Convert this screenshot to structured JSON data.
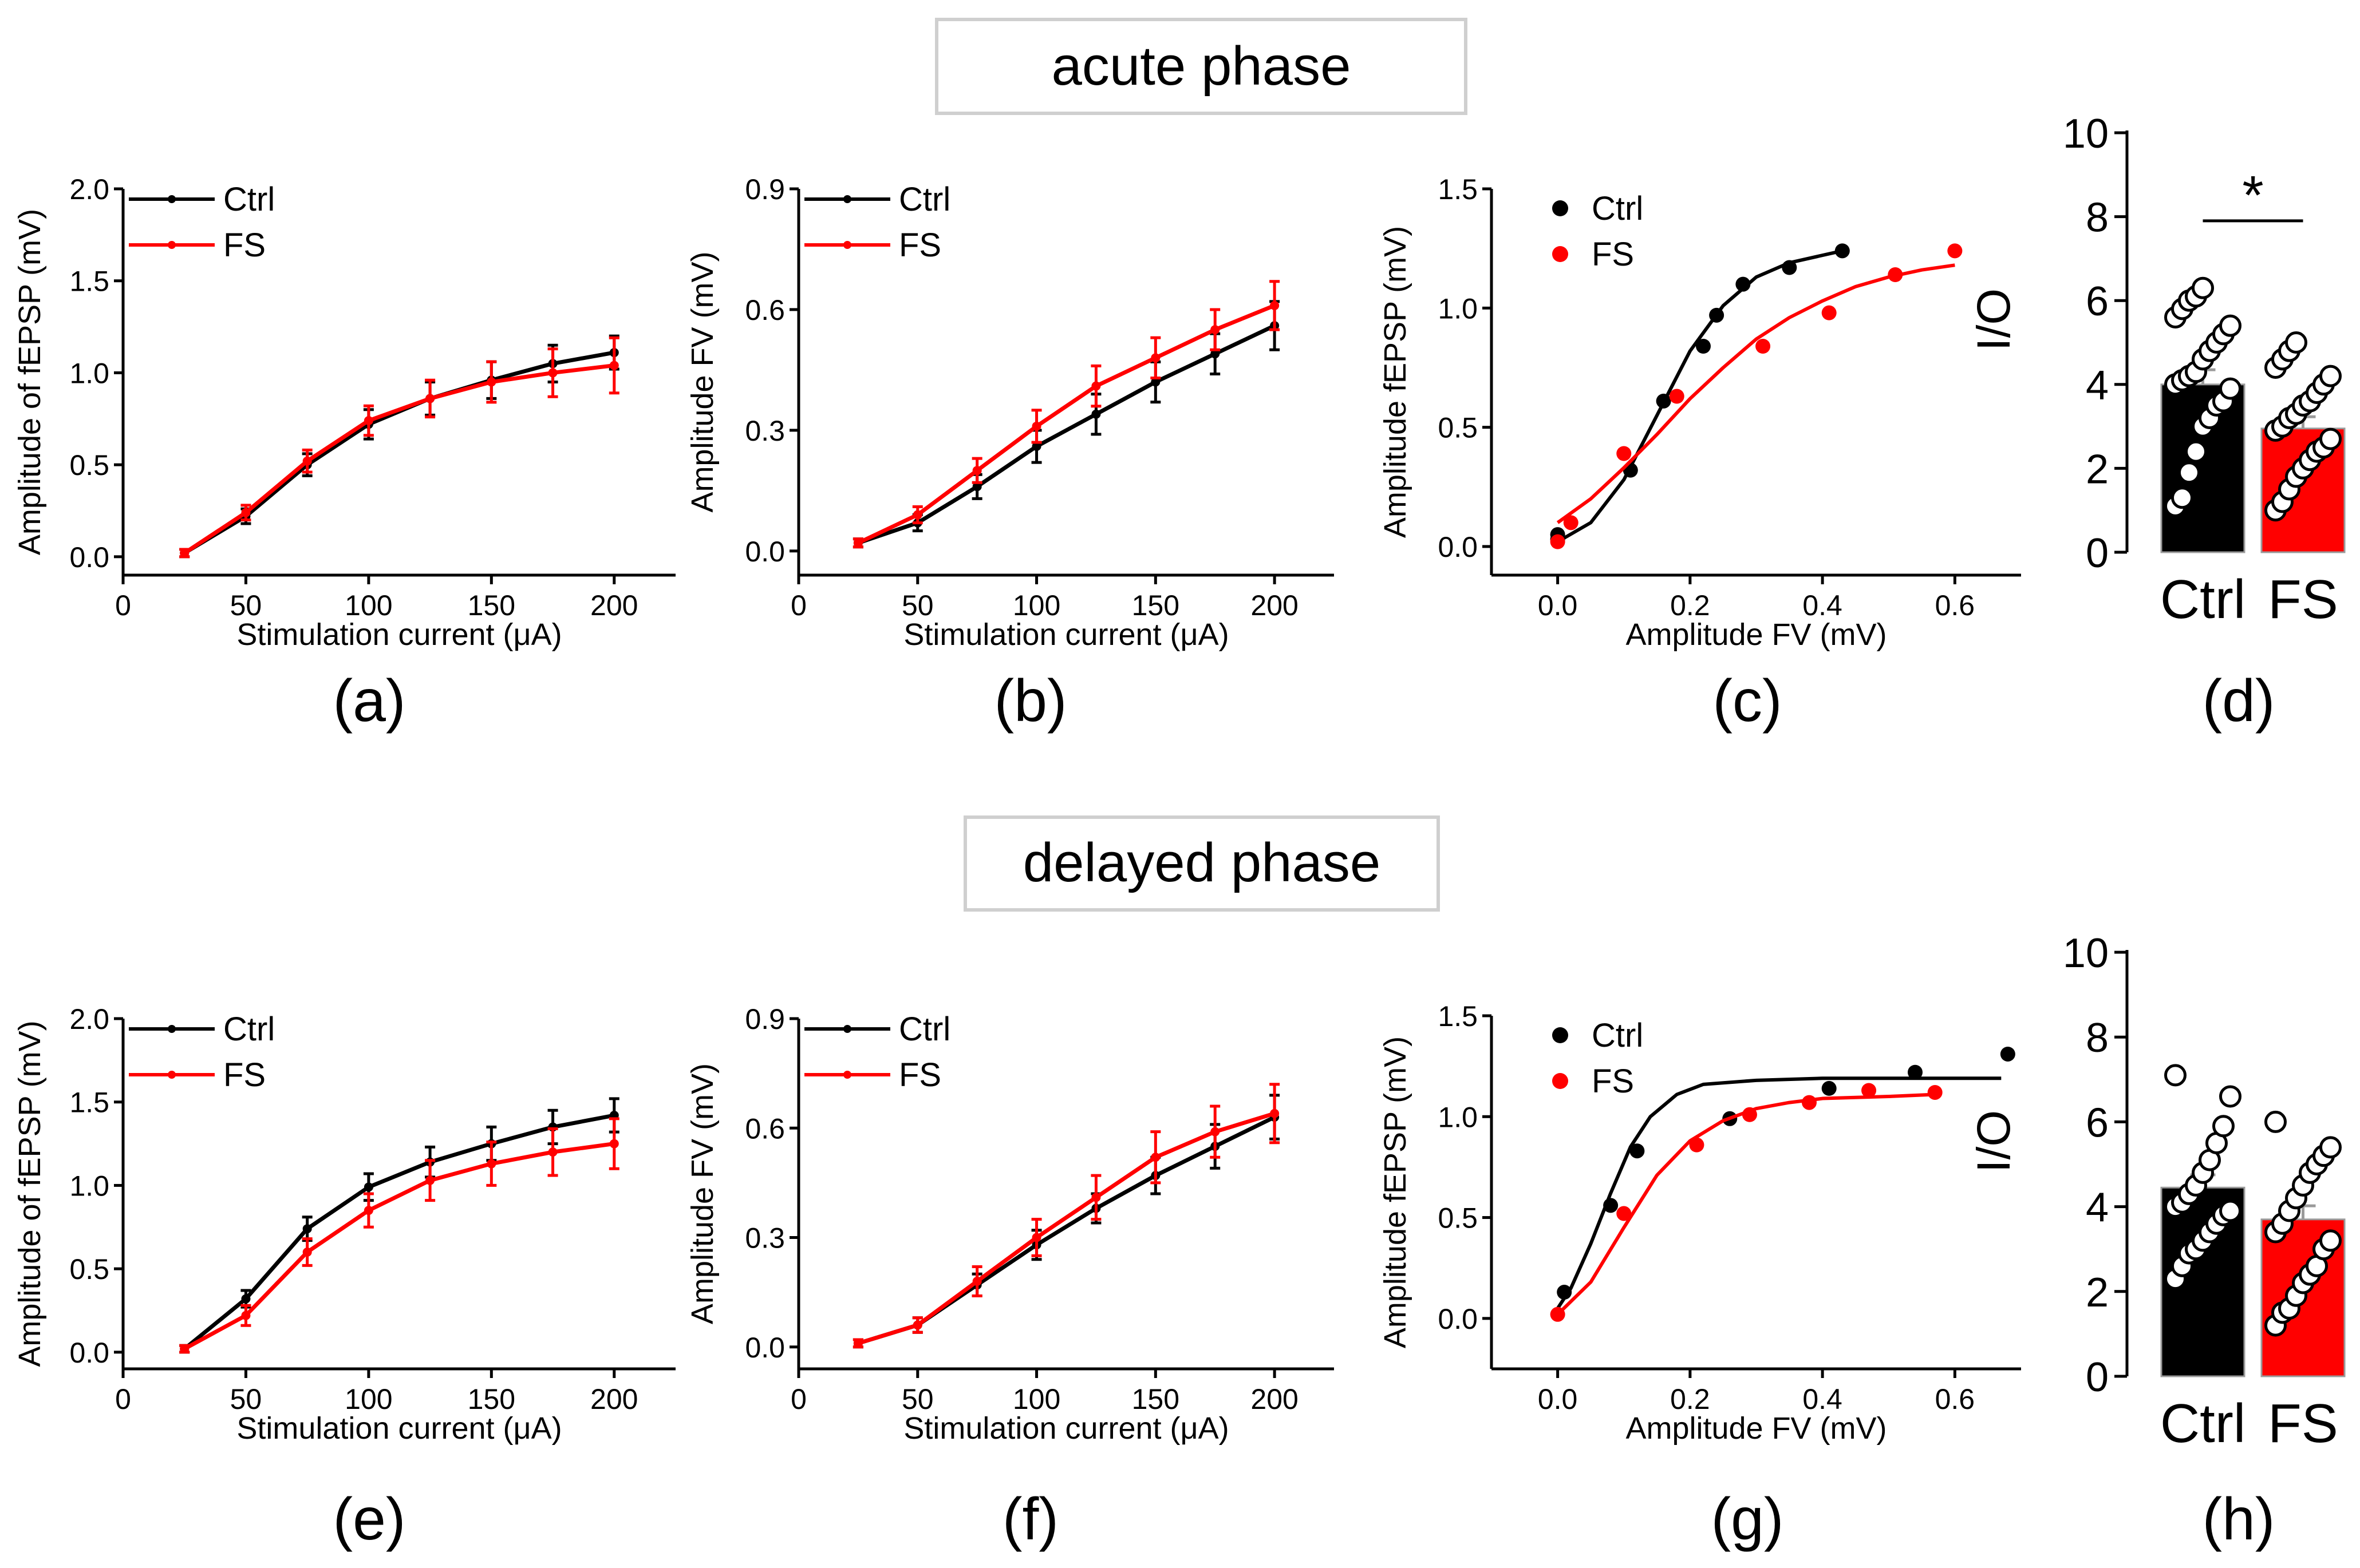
{
  "phases": [
    {
      "title": "acute phase"
    },
    {
      "title": "delayed phase"
    }
  ],
  "colors": {
    "ctrl": "#000000",
    "fs": "#ff0000",
    "box_border": "#cfcfcf"
  },
  "chart_data": [
    {
      "id": "a",
      "panel_label": "(a)",
      "type": "line",
      "xlabel": "Stimulation current (μA)",
      "ylabel": "Amplitude of fEPSP (mV)",
      "xlim": [
        0,
        225
      ],
      "ylim": [
        -0.1,
        2.0
      ],
      "xticks": [
        0,
        50,
        100,
        150,
        200
      ],
      "xtick_labels": [
        "0",
        "50",
        "100",
        "150",
        "200"
      ],
      "yticks": [
        0,
        0.5,
        1.0,
        1.5,
        2.0
      ],
      "ytick_labels": [
        "0.0",
        "0.5",
        "1.0",
        "1.5",
        "2.0"
      ],
      "legend_position": "top-left",
      "x": [
        25,
        50,
        75,
        100,
        125,
        150,
        175,
        200
      ],
      "series": [
        {
          "name": "Ctrl",
          "color": "#000000",
          "values": [
            0.02,
            0.22,
            0.5,
            0.72,
            0.86,
            0.96,
            1.05,
            1.11
          ],
          "errors": [
            0.02,
            0.04,
            0.06,
            0.08,
            0.09,
            0.1,
            0.1,
            0.09
          ]
        },
        {
          "name": "FS",
          "color": "#ff0000",
          "values": [
            0.02,
            0.24,
            0.52,
            0.74,
            0.86,
            0.95,
            1.0,
            1.04
          ],
          "errors": [
            0.02,
            0.04,
            0.06,
            0.08,
            0.1,
            0.11,
            0.13,
            0.15
          ]
        }
      ]
    },
    {
      "id": "b",
      "panel_label": "(b)",
      "type": "line",
      "xlabel": "Stimulation current (μA)",
      "ylabel": "Amplitude FV (mV)",
      "xlim": [
        0,
        225
      ],
      "ylim": [
        -0.06,
        0.9
      ],
      "xticks": [
        0,
        50,
        100,
        150,
        200
      ],
      "xtick_labels": [
        "0",
        "50",
        "100",
        "150",
        "200"
      ],
      "yticks": [
        0,
        0.3,
        0.6,
        0.9
      ],
      "ytick_labels": [
        "0.0",
        "0.3",
        "0.6",
        "0.9"
      ],
      "legend_position": "top-left",
      "x": [
        25,
        50,
        75,
        100,
        125,
        150,
        175,
        200
      ],
      "series": [
        {
          "name": "Ctrl",
          "color": "#000000",
          "values": [
            0.02,
            0.07,
            0.16,
            0.26,
            0.34,
            0.42,
            0.49,
            0.56
          ],
          "errors": [
            0.01,
            0.02,
            0.03,
            0.04,
            0.05,
            0.05,
            0.05,
            0.06
          ]
        },
        {
          "name": "FS",
          "color": "#ff0000",
          "values": [
            0.02,
            0.09,
            0.2,
            0.31,
            0.41,
            0.48,
            0.55,
            0.61
          ],
          "errors": [
            0.01,
            0.02,
            0.03,
            0.04,
            0.05,
            0.05,
            0.05,
            0.06
          ]
        }
      ]
    },
    {
      "id": "c",
      "panel_label": "(c)",
      "type": "scatter",
      "xlabel": "Amplitude FV (mV)",
      "ylabel": "Amplitude fEPSP (mV)",
      "xlim": [
        -0.1,
        0.7
      ],
      "ylim": [
        -0.12,
        1.5
      ],
      "xticks": [
        0,
        0.2,
        0.4,
        0.6
      ],
      "xtick_labels": [
        "0.0",
        "0.2",
        "0.4",
        "0.6"
      ],
      "yticks": [
        0,
        0.5,
        1.0,
        1.5
      ],
      "ytick_labels": [
        "0.0",
        "0.5",
        "1.0",
        "1.5"
      ],
      "legend_position": "top-left",
      "series": [
        {
          "name": "Ctrl",
          "color": "#000000",
          "points": [
            [
              0.0,
              0.03
            ],
            [
              0.0,
              0.05
            ],
            [
              0.11,
              0.32
            ],
            [
              0.16,
              0.61
            ],
            [
              0.22,
              0.84
            ],
            [
              0.24,
              0.97
            ],
            [
              0.28,
              1.1
            ],
            [
              0.35,
              1.17
            ],
            [
              0.43,
              1.24
            ]
          ],
          "fit": [
            [
              0.0,
              0.02
            ],
            [
              0.05,
              0.1
            ],
            [
              0.1,
              0.28
            ],
            [
              0.15,
              0.55
            ],
            [
              0.2,
              0.82
            ],
            [
              0.25,
              1.01
            ],
            [
              0.3,
              1.13
            ],
            [
              0.35,
              1.19
            ],
            [
              0.43,
              1.24
            ]
          ]
        },
        {
          "name": "FS",
          "color": "#ff0000",
          "points": [
            [
              0.0,
              0.02
            ],
            [
              0.02,
              0.1
            ],
            [
              0.1,
              0.39
            ],
            [
              0.18,
              0.63
            ],
            [
              0.31,
              0.84
            ],
            [
              0.41,
              0.98
            ],
            [
              0.51,
              1.14
            ],
            [
              0.6,
              1.24
            ]
          ],
          "fit": [
            [
              0.0,
              0.1
            ],
            [
              0.05,
              0.2
            ],
            [
              0.1,
              0.33
            ],
            [
              0.15,
              0.47
            ],
            [
              0.2,
              0.62
            ],
            [
              0.25,
              0.75
            ],
            [
              0.3,
              0.87
            ],
            [
              0.35,
              0.96
            ],
            [
              0.4,
              1.03
            ],
            [
              0.45,
              1.09
            ],
            [
              0.5,
              1.13
            ],
            [
              0.55,
              1.16
            ],
            [
              0.6,
              1.18
            ]
          ]
        }
      ]
    },
    {
      "id": "d",
      "panel_label": "(d)",
      "type": "bar",
      "ylabel": "I/O",
      "ylim": [
        0,
        10
      ],
      "yticks": [
        0,
        2,
        4,
        6,
        8,
        10
      ],
      "ytick_labels": [
        "0",
        "2",
        "4",
        "6",
        "8",
        "10"
      ],
      "categories": [
        "Ctrl",
        "FS"
      ],
      "values": [
        4.0,
        2.95
      ],
      "errors": [
        0.35,
        0.28
      ],
      "significance": "*",
      "dots": [
        [
          1.1,
          1.3,
          1.9,
          2.4,
          3.0,
          3.2,
          3.5,
          3.6,
          3.9,
          4.0,
          4.1,
          4.2,
          4.3,
          4.6,
          4.8,
          5.0,
          5.2,
          5.4,
          5.6,
          5.8,
          6.0,
          6.1,
          6.3
        ],
        [
          1.0,
          1.2,
          1.5,
          1.8,
          2.0,
          2.2,
          2.4,
          2.5,
          2.7,
          2.9,
          3.0,
          3.2,
          3.3,
          3.5,
          3.6,
          3.8,
          4.0,
          4.2,
          4.4,
          4.6,
          4.8,
          5.0
        ]
      ]
    },
    {
      "id": "e",
      "panel_label": "(e)",
      "type": "line",
      "xlabel": "Stimulation current (μA)",
      "ylabel": "Amplitude of fEPSP (mV)",
      "xlim": [
        0,
        225
      ],
      "ylim": [
        -0.1,
        2.0
      ],
      "xticks": [
        0,
        50,
        100,
        150,
        200
      ],
      "xtick_labels": [
        "0",
        "50",
        "100",
        "150",
        "200"
      ],
      "yticks": [
        0,
        0.5,
        1.0,
        1.5,
        2.0
      ],
      "ytick_labels": [
        "0.0",
        "0.5",
        "1.0",
        "1.5",
        "2.0"
      ],
      "legend_position": "top-left",
      "x": [
        25,
        50,
        75,
        100,
        125,
        150,
        175,
        200
      ],
      "series": [
        {
          "name": "Ctrl",
          "color": "#000000",
          "values": [
            0.02,
            0.32,
            0.74,
            0.99,
            1.14,
            1.25,
            1.35,
            1.42
          ],
          "errors": [
            0.02,
            0.05,
            0.07,
            0.08,
            0.09,
            0.1,
            0.1,
            0.1
          ]
        },
        {
          "name": "FS",
          "color": "#ff0000",
          "values": [
            0.02,
            0.22,
            0.6,
            0.85,
            1.03,
            1.13,
            1.2,
            1.25
          ],
          "errors": [
            0.02,
            0.06,
            0.08,
            0.1,
            0.12,
            0.13,
            0.14,
            0.15
          ]
        }
      ]
    },
    {
      "id": "f",
      "panel_label": "(f)",
      "type": "line",
      "xlabel": "Stimulation current (μA)",
      "ylabel": "Amplitude FV (mV)",
      "xlim": [
        0,
        225
      ],
      "ylim": [
        -0.06,
        0.9
      ],
      "xticks": [
        0,
        50,
        100,
        150,
        200
      ],
      "xtick_labels": [
        "0",
        "50",
        "100",
        "150",
        "200"
      ],
      "yticks": [
        0,
        0.3,
        0.6,
        0.9
      ],
      "ytick_labels": [
        "0.0",
        "0.3",
        "0.6",
        "0.9"
      ],
      "legend_position": "top-left",
      "x": [
        25,
        50,
        75,
        100,
        125,
        150,
        175,
        200
      ],
      "series": [
        {
          "name": "Ctrl",
          "color": "#000000",
          "values": [
            0.01,
            0.06,
            0.17,
            0.28,
            0.38,
            0.47,
            0.55,
            0.63
          ],
          "errors": [
            0.01,
            0.02,
            0.03,
            0.04,
            0.04,
            0.05,
            0.06,
            0.06
          ]
        },
        {
          "name": "FS",
          "color": "#ff0000",
          "values": [
            0.01,
            0.06,
            0.18,
            0.3,
            0.41,
            0.52,
            0.59,
            0.64
          ],
          "errors": [
            0.01,
            0.02,
            0.04,
            0.05,
            0.06,
            0.07,
            0.07,
            0.08
          ]
        }
      ]
    },
    {
      "id": "g",
      "panel_label": "(g)",
      "type": "scatter",
      "xlabel": "Amplitude FV (mV)",
      "ylabel": "Amplitude fEPSP (mV)",
      "xlim": [
        -0.1,
        0.7
      ],
      "ylim": [
        -0.25,
        1.5
      ],
      "xticks": [
        0,
        0.2,
        0.4,
        0.6
      ],
      "xtick_labels": [
        "0.0",
        "0.2",
        "0.4",
        "0.6"
      ],
      "yticks": [
        0,
        0.5,
        1.0,
        1.5
      ],
      "ytick_labels": [
        "0.0",
        "0.5",
        "1.0",
        "1.5"
      ],
      "legend_position": "top-left",
      "series": [
        {
          "name": "Ctrl",
          "color": "#000000",
          "points": [
            [
              0.01,
              0.13
            ],
            [
              0.08,
              0.56
            ],
            [
              0.12,
              0.83
            ],
            [
              0.26,
              0.99
            ],
            [
              0.41,
              1.14
            ],
            [
              0.54,
              1.22
            ],
            [
              0.68,
              1.31
            ]
          ],
          "fit": [
            [
              0.0,
              0.05
            ],
            [
              0.02,
              0.15
            ],
            [
              0.05,
              0.37
            ],
            [
              0.08,
              0.62
            ],
            [
              0.11,
              0.85
            ],
            [
              0.14,
              1.0
            ],
            [
              0.18,
              1.11
            ],
            [
              0.22,
              1.16
            ],
            [
              0.3,
              1.18
            ],
            [
              0.4,
              1.19
            ],
            [
              0.5,
              1.19
            ],
            [
              0.67,
              1.19
            ]
          ]
        },
        {
          "name": "FS",
          "color": "#ff0000",
          "points": [
            [
              0.0,
              0.02
            ],
            [
              0.1,
              0.52
            ],
            [
              0.21,
              0.86
            ],
            [
              0.29,
              1.01
            ],
            [
              0.38,
              1.07
            ],
            [
              0.47,
              1.13
            ],
            [
              0.57,
              1.12
            ]
          ],
          "fit": [
            [
              0.0,
              0.02
            ],
            [
              0.05,
              0.18
            ],
            [
              0.1,
              0.45
            ],
            [
              0.15,
              0.71
            ],
            [
              0.2,
              0.88
            ],
            [
              0.25,
              0.98
            ],
            [
              0.3,
              1.04
            ],
            [
              0.35,
              1.07
            ],
            [
              0.4,
              1.09
            ],
            [
              0.5,
              1.1
            ],
            [
              0.57,
              1.11
            ]
          ]
        }
      ]
    },
    {
      "id": "h",
      "panel_label": "(h)",
      "type": "bar",
      "ylabel": "I/O",
      "ylim": [
        0,
        10
      ],
      "yticks": [
        0,
        2,
        4,
        6,
        8,
        10
      ],
      "ytick_labels": [
        "0",
        "2",
        "4",
        "6",
        "8",
        "10"
      ],
      "categories": [
        "Ctrl",
        "FS"
      ],
      "values": [
        4.45,
        3.7
      ],
      "errors": [
        0.3,
        0.32
      ],
      "significance": "",
      "dots": [
        [
          2.3,
          2.6,
          2.9,
          3.0,
          3.2,
          3.4,
          3.6,
          3.8,
          3.9,
          4.0,
          4.1,
          4.3,
          4.5,
          4.8,
          5.1,
          5.5,
          5.9,
          6.6,
          7.1
        ],
        [
          1.2,
          1.5,
          1.6,
          1.9,
          2.2,
          2.4,
          2.6,
          3.0,
          3.2,
          3.4,
          3.6,
          3.9,
          4.2,
          4.5,
          4.8,
          5.0,
          5.2,
          5.4,
          6.0
        ]
      ]
    }
  ]
}
